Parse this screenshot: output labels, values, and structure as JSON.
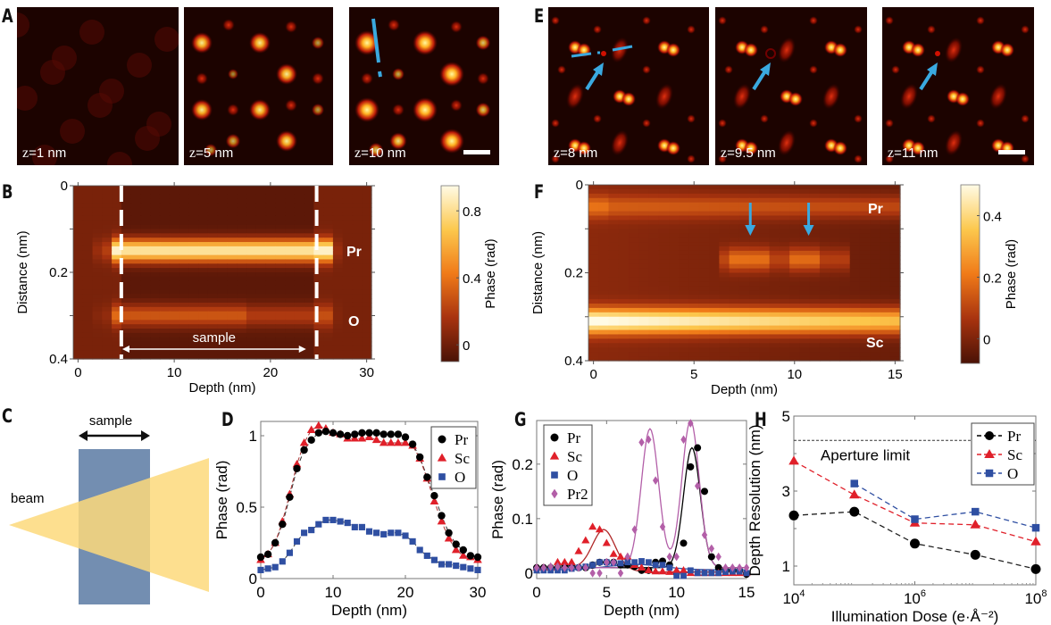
{
  "figure": {
    "panels": {
      "A": {
        "letter": "A",
        "images": [
          {
            "label_var": "z",
            "label_val": "=1 nm",
            "intensity": 0.25,
            "pattern": "A"
          },
          {
            "label_var": "z",
            "label_val": "=5 nm",
            "intensity": 0.75,
            "pattern": "A"
          },
          {
            "label_var": "z",
            "label_val": "=10 nm",
            "intensity": 1.0,
            "pattern": "A",
            "scalebar": true,
            "annotation": "dashed-line"
          }
        ]
      },
      "E": {
        "letter": "E",
        "images": [
          {
            "label_var": "z",
            "label_val": "=8 nm",
            "pattern": "E",
            "scalebar": false,
            "annotation": "arrow+dashed-line",
            "center_dot": "dot"
          },
          {
            "label_var": "z",
            "label_val": "=9.5 nm",
            "pattern": "E",
            "annotation": "arrow",
            "center_dot": "ring"
          },
          {
            "label_var": "z",
            "label_val": "=11 nm",
            "pattern": "E",
            "scalebar": true,
            "annotation": "arrow",
            "center_dot": "dot"
          }
        ]
      },
      "B": {
        "letter": "B",
        "annotations": {
          "pr": "Pr",
          "o": "O",
          "sample": "sample"
        }
      },
      "F": {
        "letter": "F",
        "annotations": {
          "pr": "Pr",
          "sc": "Sc"
        }
      },
      "C": {
        "letter": "C",
        "sample_label": "sample",
        "beam_label": "beam",
        "colors": {
          "sample": "#5b7aa3",
          "beam": "#fdd97b"
        }
      },
      "D": {
        "letter": "D"
      },
      "G": {
        "letter": "G"
      },
      "H": {
        "letter": "H"
      }
    },
    "colors": {
      "pr": "#000000",
      "sc": "#e0202a",
      "o": "#2f4fa2",
      "pr2": "#b35fa8",
      "arrow": "#3aa9e0"
    }
  },
  "chart_data": [
    {
      "id": "B",
      "type": "heatmap",
      "xlabel": "Depth (nm)",
      "ylabel": "Distance (nm)",
      "xticks": [
        "0",
        "10",
        "20",
        "30"
      ],
      "xlim": [
        -0.5,
        30.5
      ],
      "yticks": [
        "0",
        "0.2",
        "0.4"
      ],
      "ylim": [
        0,
        0.4
      ],
      "colorbar": {
        "label": "Phase (rad)",
        "ticks": [
          "0.8",
          "0.4",
          "0"
        ],
        "range": [
          -0.1,
          0.95
        ]
      },
      "sample_bounds": [
        4.5,
        24.8
      ],
      "rows": [
        {
          "distance": 0.15,
          "label": "Pr",
          "peak": 0.9
        },
        {
          "distance": 0.3,
          "label": "O",
          "peak": 0.35
        }
      ]
    },
    {
      "id": "F",
      "type": "heatmap",
      "xlabel": "Depth (nm)",
      "ylabel": "Distance (nm)",
      "xticks": [
        "0",
        "5",
        "10",
        "15"
      ],
      "xlim": [
        -0.25,
        15.25
      ],
      "yticks": [
        "0",
        "0.2",
        "0.4"
      ],
      "ylim": [
        0,
        0.4
      ],
      "colorbar": {
        "label": "Phase (rad)",
        "ticks": [
          "0.4",
          "0.2",
          "0"
        ],
        "range": [
          -0.08,
          0.5
        ]
      },
      "rows": [
        {
          "distance": 0.05,
          "label": "Pr",
          "peak": 0.2
        },
        {
          "distance": 0.17,
          "label": "",
          "peak": 0.2,
          "x_range": [
            6.5,
            12.5
          ]
        },
        {
          "distance": 0.31,
          "label": "Sc",
          "peak": 0.5
        }
      ],
      "arrows_at_depth": [
        7.8,
        10.7
      ]
    },
    {
      "id": "D",
      "type": "scatter",
      "xlabel": "Depth (nm)",
      "ylabel": "Phase (rad)",
      "xlim": [
        0,
        30
      ],
      "ylim": [
        0,
        1.1
      ],
      "xticks": [
        "0",
        "10",
        "20",
        "30"
      ],
      "yticks": [
        "0",
        "0.5",
        "1"
      ],
      "legend": "top-right",
      "x": [
        0,
        1,
        2,
        3,
        4,
        5,
        6,
        7,
        8,
        9,
        10,
        11,
        12,
        13,
        14,
        15,
        16,
        17,
        18,
        19,
        20,
        21,
        22,
        23,
        24,
        25,
        26,
        27,
        28,
        29,
        30
      ],
      "series": [
        {
          "name": "Pr",
          "marker": "circle",
          "values": [
            0.15,
            0.17,
            0.25,
            0.38,
            0.57,
            0.77,
            0.9,
            0.97,
            1.02,
            1.03,
            1.02,
            1.01,
            1.0,
            1.01,
            1.02,
            1.02,
            1.02,
            1.01,
            1.01,
            1.01,
            0.99,
            0.94,
            0.85,
            0.71,
            0.58,
            0.44,
            0.32,
            0.24,
            0.2,
            0.16,
            0.15
          ]
        },
        {
          "name": "Sc",
          "marker": "triangle",
          "values": [
            0.13,
            0.17,
            0.25,
            0.4,
            0.59,
            0.8,
            0.95,
            1.04,
            1.07,
            1.05,
            1.02,
            1.01,
            0.98,
            0.98,
            0.98,
            0.99,
            0.97,
            0.95,
            0.95,
            0.95,
            0.95,
            0.93,
            0.84,
            0.7,
            0.54,
            0.4,
            0.28,
            0.2,
            0.16,
            0.15,
            0.13
          ]
        },
        {
          "name": "O",
          "marker": "square",
          "values": [
            0.06,
            0.07,
            0.08,
            0.12,
            0.18,
            0.26,
            0.32,
            0.34,
            0.38,
            0.41,
            0.41,
            0.4,
            0.39,
            0.36,
            0.36,
            0.33,
            0.32,
            0.31,
            0.32,
            0.32,
            0.3,
            0.26,
            0.2,
            0.16,
            0.13,
            0.1,
            0.1,
            0.09,
            0.08,
            0.07,
            0.06
          ]
        }
      ]
    },
    {
      "id": "G",
      "type": "scatter",
      "xlabel": "Depth (nm)",
      "ylabel": "Phase (rad)",
      "xlim": [
        0,
        15
      ],
      "ylim": [
        -0.01,
        0.28
      ],
      "xticks": [
        "0",
        "5",
        "10",
        "15"
      ],
      "yticks": [
        "0",
        "0.1",
        "0.2"
      ],
      "legend": "top-left",
      "x": [
        0,
        0.5,
        1,
        1.5,
        2,
        2.5,
        3,
        3.5,
        4,
        4.5,
        5,
        5.5,
        6,
        6.5,
        7,
        7.5,
        8,
        8.5,
        9,
        9.5,
        10,
        10.5,
        11,
        11.5,
        12,
        12.5,
        13,
        13.5,
        14,
        14.5,
        15
      ],
      "series": [
        {
          "name": "Pr",
          "marker": "circle",
          "values": [
            0.01,
            0.01,
            0.01,
            0.01,
            0.015,
            0.012,
            0.01,
            0.01,
            0.015,
            0.02,
            0.02,
            0.02,
            0.015,
            0.015,
            0.012,
            0.005,
            0.005,
            0.02,
            0.022,
            0.015,
            0.0,
            0.055,
            0.195,
            0.23,
            0.15,
            0.03,
            0.01,
            0.005,
            0.005,
            0.005,
            -0.002
          ]
        },
        {
          "name": "Sc",
          "marker": "triangle",
          "values": [
            0.01,
            0.01,
            0.01,
            0.02,
            0.02,
            0.02,
            0.04,
            0.06,
            0.085,
            0.08,
            0.055,
            0.035,
            0.03,
            0.03,
            0.015,
            0.01,
            0.005,
            0.003,
            0.003,
            0.002,
            0.005,
            0.005,
            0.0,
            0.0,
            0.0,
            0.0,
            0.0,
            0.0,
            0.0,
            0.0,
            0.0
          ]
        },
        {
          "name": "O",
          "marker": "square",
          "values": [
            0.005,
            0.005,
            0.005,
            0.005,
            0.005,
            0.008,
            0.01,
            0.012,
            0.015,
            0.02,
            0.02,
            0.018,
            0.018,
            0.02,
            0.02,
            0.022,
            0.02,
            0.015,
            0.015,
            0.01,
            -0.005,
            -0.005,
            0.005,
            0.0,
            0.0,
            0.0,
            0.0,
            0.002,
            0.003,
            0.003,
            0.0
          ]
        },
        {
          "name": "Pr2",
          "marker": "diamond",
          "values": [
            0.01,
            0.01,
            0.012,
            0.012,
            0.01,
            0.01,
            0.01,
            0.01,
            0.0,
            0.0,
            0.02,
            0.02,
            0.0,
            0.03,
            0.08,
            0.24,
            0.245,
            0.17,
            0.085,
            0.03,
            0.03,
            0.245,
            0.275,
            0.16,
            0.07,
            0.045,
            0.03,
            0.01,
            0.01,
            0.01,
            0.01
          ]
        }
      ],
      "fits": [
        {
          "name": "Pr",
          "gaussian": {
            "amp": 0.22,
            "mu": 11.1,
            "sigma": 0.6,
            "base": 0.01
          }
        },
        {
          "name": "Sc",
          "gaussian": {
            "amp": 0.07,
            "mu": 4.8,
            "sigma": 0.8,
            "base": 0.01,
            "base_right": 0.002
          }
        },
        {
          "name": "O",
          "gaussian": {
            "amp": 0.01,
            "mu": 7.0,
            "sigma": 2.0,
            "base": 0.006
          }
        },
        {
          "name": "Pr2",
          "gaussian_pair": [
            {
              "amp": 0.255,
              "mu": 8.1,
              "sigma": 0.62
            },
            {
              "amp": 0.27,
              "mu": 11.0,
              "sigma": 0.62
            }
          ],
          "base": 0.01
        }
      ]
    },
    {
      "id": "H",
      "type": "line",
      "xlabel": "Illumination Dose (e·Å⁻²)",
      "ylabel": "Depth Resolution (nm)",
      "xscale": "log",
      "xlim": [
        10000,
        100000000
      ],
      "xticks": [
        {
          "base": "10",
          "exp": "4"
        },
        {
          "base": "10",
          "exp": "6"
        },
        {
          "base": "10",
          "exp": "8"
        }
      ],
      "ylim": [
        0.5,
        5
      ],
      "yticks": [
        "1",
        "3",
        "5"
      ],
      "legend": "top-right",
      "annotation": {
        "text": "Aperture limit",
        "y": 4.35
      },
      "series": [
        {
          "name": "Pr",
          "marker": "circle",
          "x": [
            10000,
            100000,
            1000000,
            10000000,
            100000000
          ],
          "values": [
            2.35,
            2.45,
            1.6,
            1.3,
            0.92
          ]
        },
        {
          "name": "Sc",
          "marker": "triangle",
          "x": [
            10000,
            100000,
            1000000,
            10000000,
            100000000
          ],
          "values": [
            3.8,
            2.9,
            2.15,
            2.1,
            1.65
          ]
        },
        {
          "name": "O",
          "marker": "square",
          "x": [
            100000,
            1000000,
            10000000,
            100000000
          ],
          "values": [
            3.2,
            2.25,
            2.45,
            2.02
          ]
        }
      ]
    }
  ]
}
